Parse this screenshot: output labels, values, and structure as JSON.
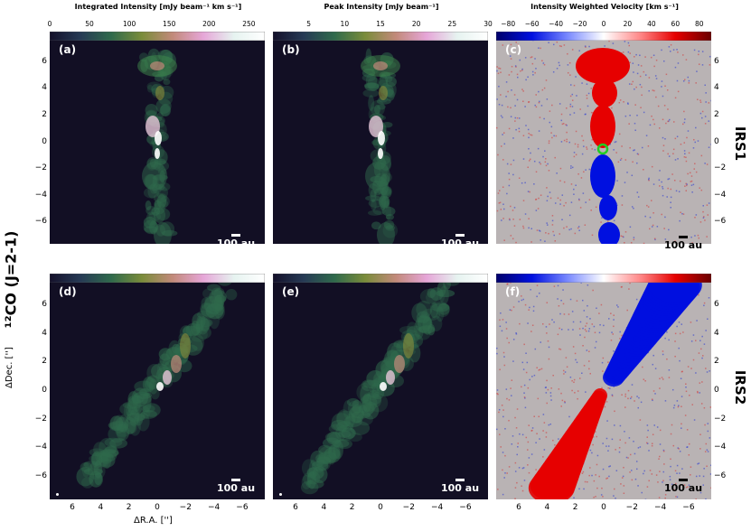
{
  "figure": {
    "colorbars": [
      {
        "title": "Integrated Intensity [mJy beam⁻¹ km s⁻¹]",
        "ticks": [
          "0",
          "50",
          "100",
          "150",
          "200",
          "250"
        ],
        "tick_values": [
          0,
          50,
          100,
          150,
          200,
          250
        ],
        "range": [
          0,
          270
        ]
      },
      {
        "title": "Peak Intensity [mJy beam⁻¹]",
        "ticks": [
          "5",
          "10",
          "15",
          "20",
          "25",
          "30"
        ],
        "tick_values": [
          5,
          10,
          15,
          20,
          25,
          30
        ],
        "range": [
          0,
          30
        ]
      },
      {
        "title": "Intensity Weighted Velocity [km s⁻¹]",
        "ticks": [
          "−80",
          "−60",
          "−40",
          "−20",
          "0",
          "20",
          "40",
          "60",
          "80"
        ],
        "tick_values": [
          -80,
          -60,
          -40,
          -20,
          0,
          20,
          40,
          60,
          80
        ],
        "range": [
          -90,
          90
        ]
      }
    ],
    "panels": [
      {
        "label": "(a)",
        "scalebar": "100 au"
      },
      {
        "label": "(b)",
        "scalebar": "100 au"
      },
      {
        "label": "(c)",
        "scalebar": "100 au"
      },
      {
        "label": "(d)",
        "scalebar": "100 au"
      },
      {
        "label": "(e)",
        "scalebar": "100 au"
      },
      {
        "label": "(f)",
        "scalebar": "100 au"
      }
    ],
    "row_labels": [
      "IRS1",
      "IRS2"
    ],
    "side_label": "¹²CO (J=2-1)",
    "ylabel": "ΔDec. ['']",
    "xlabel": "ΔR.A. ['']",
    "y_ticks": [
      "6",
      "4",
      "2",
      "0",
      "−2",
      "−4",
      "−6"
    ],
    "x_ticks": [
      "6",
      "4",
      "2",
      "0",
      "−2",
      "−4",
      "−6"
    ],
    "colors": {
      "map_background": "#120f24",
      "velocity_background": "#b9b3b4",
      "redshift": "#e60000",
      "blueshift": "#0010e0",
      "center_marker": "#22cc22"
    }
  }
}
